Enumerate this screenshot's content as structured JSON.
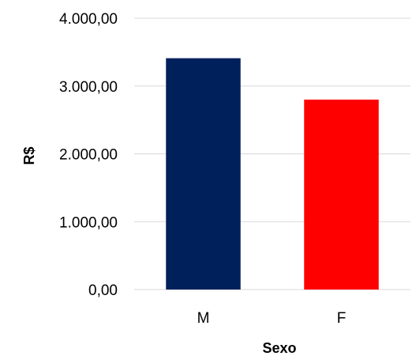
{
  "chart_data": {
    "type": "bar",
    "title": "",
    "categories": [
      "M",
      "F"
    ],
    "values": [
      3410,
      2800
    ],
    "colors": [
      "#00205b",
      "#ff0000"
    ],
    "xlabel": "Sexo",
    "ylabel": "R$",
    "ylim": [
      0,
      4000
    ],
    "yticks": [
      0,
      1000,
      2000,
      3000,
      4000
    ],
    "ytick_labels": [
      "0,00",
      "1.000,00",
      "2.000,00",
      "3.000,00",
      "4.000,00"
    ],
    "grid": true,
    "legend": "none"
  }
}
